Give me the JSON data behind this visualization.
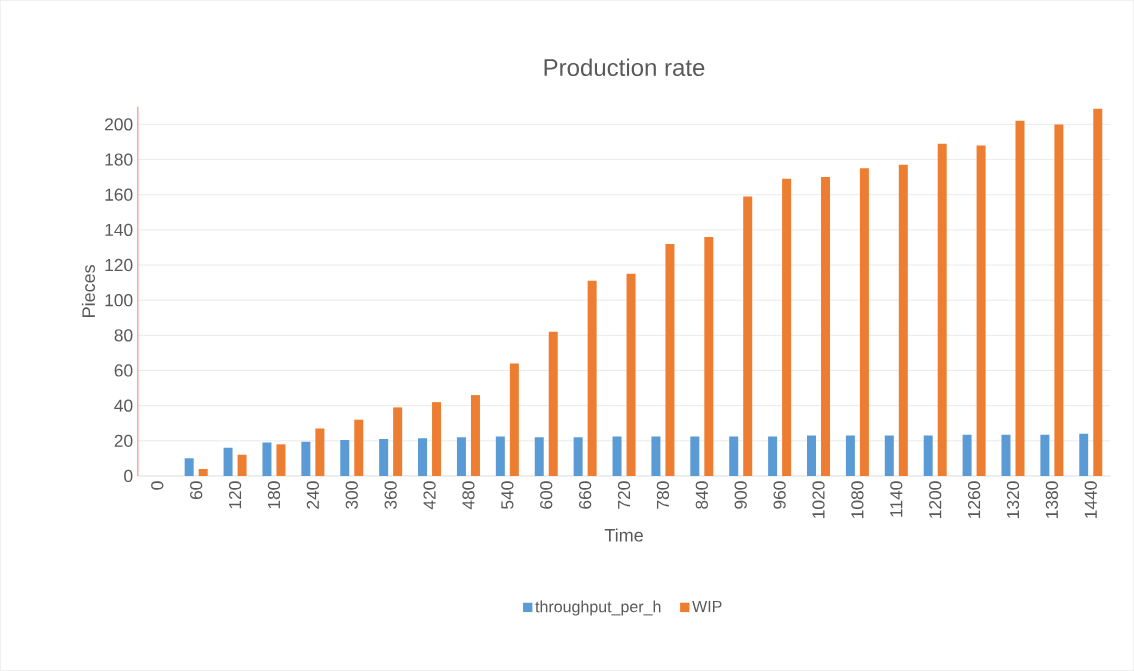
{
  "chart_data": {
    "type": "bar",
    "title": "Production rate",
    "xlabel": "Time",
    "ylabel": "Pieces",
    "categories": [
      "0",
      "60",
      "120",
      "180",
      "240",
      "300",
      "360",
      "420",
      "480",
      "540",
      "600",
      "660",
      "720",
      "780",
      "840",
      "900",
      "960",
      "1020",
      "1080",
      "1140",
      "1200",
      "1260",
      "1320",
      "1380",
      "1440"
    ],
    "series": [
      {
        "name": "throughput_per_h",
        "color": "#5b9bd5",
        "values": [
          0,
          10,
          16,
          19,
          19.5,
          20.5,
          21,
          21.5,
          22,
          22.5,
          22,
          22,
          22.5,
          22.5,
          22.5,
          22.5,
          22.5,
          23,
          23,
          23,
          23,
          23.5,
          23.5,
          23.5,
          24
        ]
      },
      {
        "name": "WIP",
        "color": "#ed7d31",
        "values": [
          0,
          4,
          12,
          18,
          27,
          32,
          39,
          42,
          46,
          64,
          82,
          111,
          115,
          132,
          136,
          159,
          169,
          170,
          175,
          177,
          189,
          188,
          202,
          200,
          209
        ]
      }
    ],
    "ylim": [
      0,
      210
    ],
    "yticks": [
      0,
      20,
      40,
      60,
      80,
      100,
      120,
      140,
      160,
      180,
      200
    ],
    "grid": "y",
    "legend": "bottom"
  }
}
